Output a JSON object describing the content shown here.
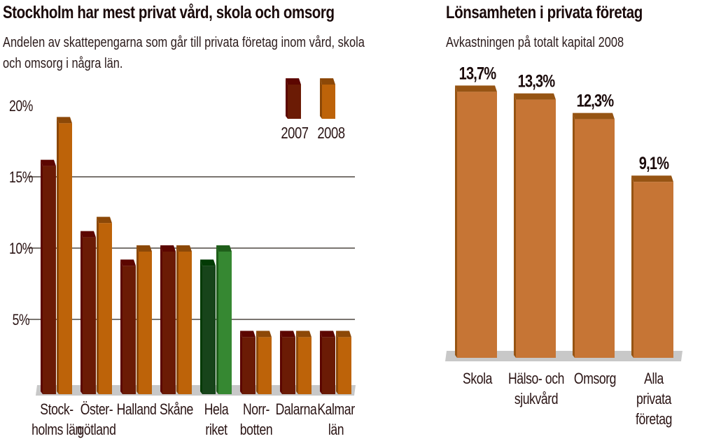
{
  "chart_data": [
    {
      "type": "bar",
      "title": "Stockholm har mest privat vård, skola och omsorg",
      "subtitle_lines": [
        "Andelen av skattepengarna som går till privata företag inom vård, skola",
        "och omsorg i några län."
      ],
      "categories": [
        [
          "Stock-",
          "holms län"
        ],
        [
          "Öster-",
          "götland"
        ],
        [
          "Halland"
        ],
        [
          "Skåne"
        ],
        [
          "Hela",
          "riket"
        ],
        [
          "Norr-",
          "botten"
        ],
        [
          "Dalarna"
        ],
        [
          "Kalmar",
          "län"
        ]
      ],
      "series": [
        {
          "name": "2007",
          "values": [
            16,
            11,
            9,
            10,
            9,
            4,
            4,
            4
          ]
        },
        {
          "name": "2008",
          "values": [
            19,
            12,
            10,
            10,
            10,
            4,
            4,
            4
          ]
        }
      ],
      "highlight_index": 4,
      "yticks": [
        "20%",
        "15%",
        "10%",
        "5%"
      ],
      "ytick_values": [
        20,
        15,
        10,
        5
      ],
      "ylim": [
        0,
        20
      ],
      "grid": true,
      "legend_position": "top-right",
      "colors": {
        "s2007": "#6b1b05",
        "s2007_cap": "#5c0600",
        "s2008": "#bd6309",
        "s2008_cap": "#8c4807",
        "hl2007": "#17441a",
        "hl2007_cap": "#033a05",
        "hl2008": "#368832",
        "hl2008_cap": "#1f5e1a"
      }
    },
    {
      "type": "bar",
      "title": "Lönsamheten i privata företag",
      "subtitle_lines": [
        "Avkastningen på totalt kapital 2008"
      ],
      "categories": [
        [
          "Skola"
        ],
        [
          "Hälso- och",
          "sjukvård"
        ],
        [
          "Omsorg"
        ],
        [
          "Alla",
          "privata",
          "företag"
        ]
      ],
      "values": [
        13.7,
        13.3,
        12.3,
        9.1
      ],
      "data_labels": [
        "13,7%",
        "13,3%",
        "12,3%",
        "9,1%"
      ],
      "ylim": [
        0,
        18
      ],
      "grid": false,
      "colors": {
        "bar": "#c67535",
        "cap": "#965413"
      }
    }
  ]
}
